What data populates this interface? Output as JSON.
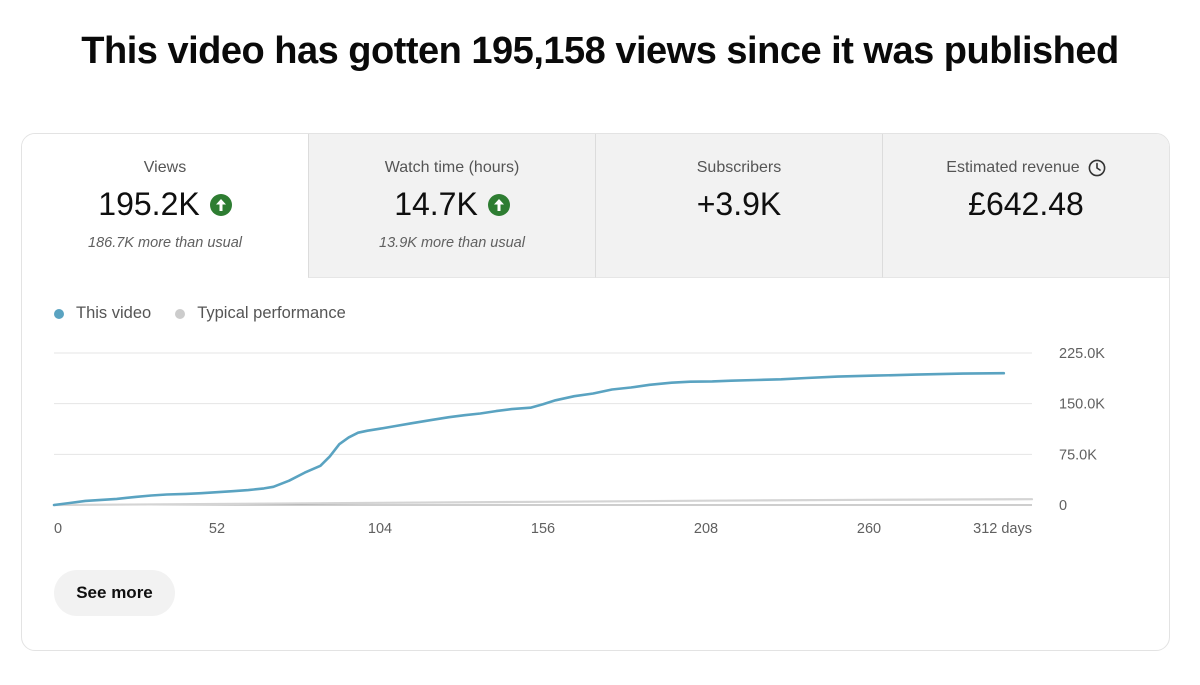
{
  "headline": "This video has gotten 195,158 views since it was published",
  "metrics": [
    {
      "label": "Views",
      "value": "195.2K",
      "note": "186.7K more than usual",
      "trend": "up",
      "selected": true
    },
    {
      "label": "Watch time (hours)",
      "value": "14.7K",
      "note": "13.9K more than usual",
      "trend": "up",
      "selected": false
    },
    {
      "label": "Subscribers",
      "value": "+3.9K",
      "note": "",
      "trend": "none",
      "selected": false
    },
    {
      "label": "Estimated revenue",
      "value": "£642.48",
      "note": "",
      "trend": "none",
      "icon": "clock-icon",
      "selected": false
    }
  ],
  "legend": [
    {
      "label": "This video",
      "color": "#5aa3c1"
    },
    {
      "label": "Typical performance",
      "color": "#cccccc"
    }
  ],
  "see_more": "See more",
  "colors": {
    "trend_up": "#2e7d32",
    "series_main": "#5aa3c1",
    "series_typical": "#d4d4d4"
  },
  "chart_data": {
    "type": "line",
    "xlabel": "",
    "ylabel": "",
    "xlim": [
      0,
      312
    ],
    "ylim": [
      0,
      225000
    ],
    "x_ticks": [
      0,
      52,
      104,
      156,
      208,
      260,
      312
    ],
    "x_tick_labels": [
      "0",
      "52",
      "104",
      "156",
      "208",
      "260",
      "312 days"
    ],
    "y_ticks": [
      0,
      75000,
      150000,
      225000
    ],
    "y_tick_labels": [
      "0",
      "75.0K",
      "150.0K",
      "225.0K"
    ],
    "grid": true,
    "legend_position": "top-left",
    "series": [
      {
        "name": "This video",
        "color": "#5aa3c1",
        "x": [
          0,
          5,
          10,
          15,
          20,
          26,
          31,
          36,
          42,
          47,
          52,
          57,
          62,
          67,
          70,
          75,
          80,
          85,
          88,
          91,
          94,
          97,
          100,
          104,
          109,
          114,
          120,
          126,
          131,
          136,
          141,
          146,
          152,
          156,
          160,
          166,
          172,
          178,
          184,
          190,
          197,
          203,
          210,
          216,
          224,
          232,
          240,
          250,
          262,
          275,
          290,
          303
        ],
        "y": [
          0,
          3000,
          6000,
          7500,
          9000,
          12000,
          14000,
          15500,
          16500,
          17500,
          19000,
          20500,
          22000,
          24500,
          27000,
          36000,
          48000,
          58000,
          72000,
          90000,
          100000,
          107000,
          110000,
          113000,
          117000,
          121000,
          125500,
          130000,
          133000,
          135500,
          139000,
          142000,
          144000,
          149000,
          155000,
          161000,
          165000,
          171000,
          174000,
          178000,
          181000,
          182500,
          183000,
          184000,
          185000,
          186000,
          188000,
          190000,
          191500,
          193000,
          194500,
          195158
        ]
      },
      {
        "name": "Typical performance",
        "color": "#d4d4d4",
        "x": [
          0,
          52,
          104,
          156,
          208,
          260,
          312
        ],
        "y": [
          0,
          1500,
          3200,
          4800,
          6300,
          7700,
          8600
        ]
      }
    ]
  }
}
